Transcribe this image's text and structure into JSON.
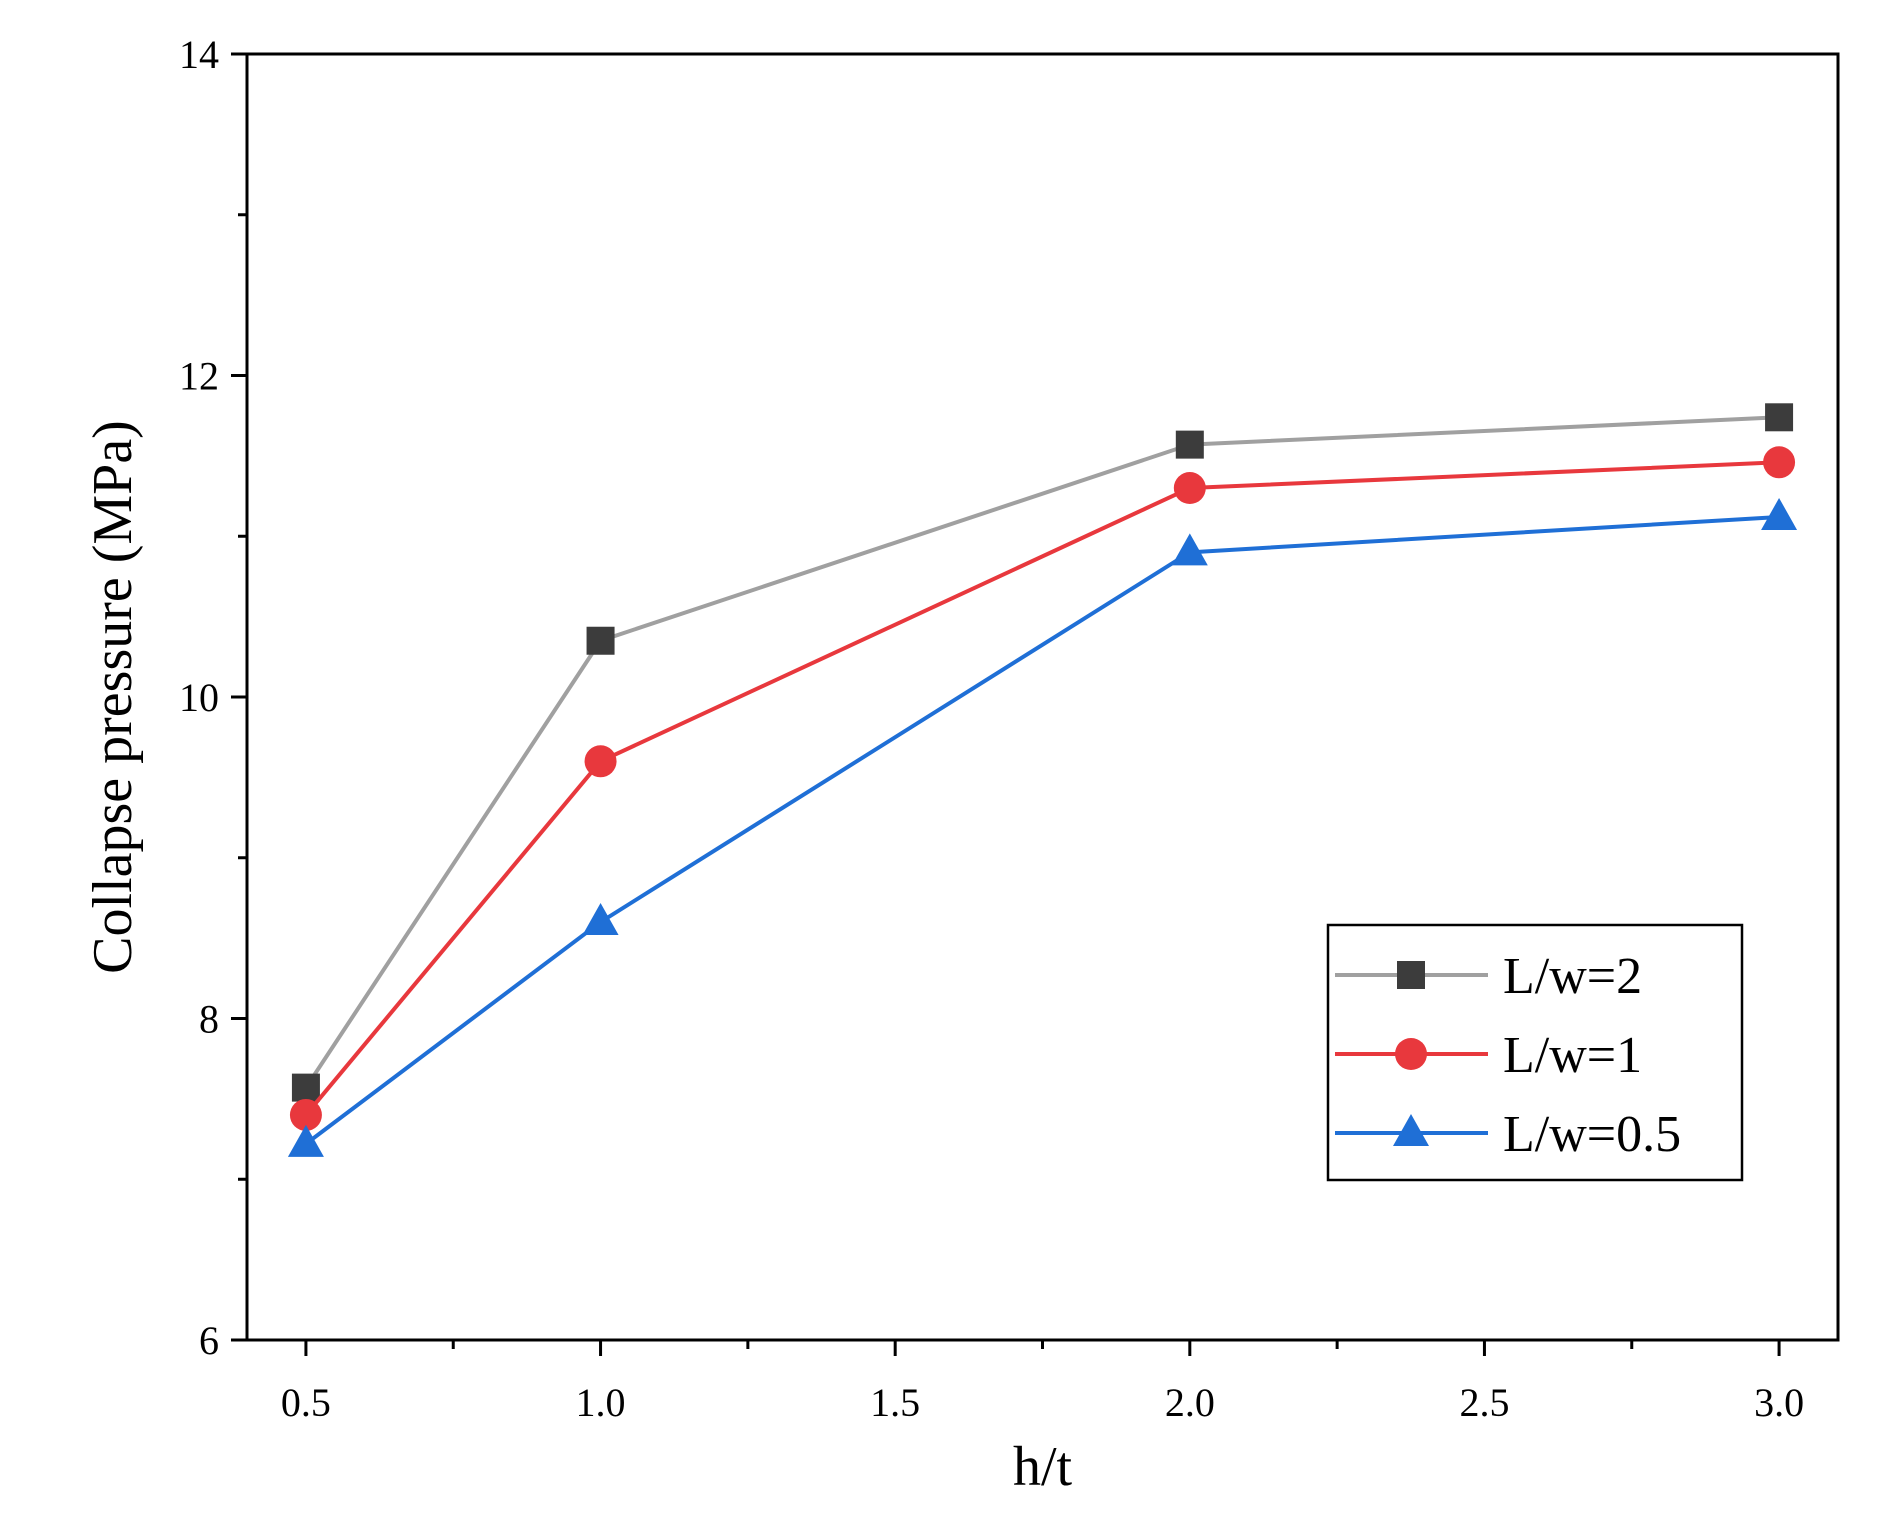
{
  "chart_data": {
    "type": "line",
    "title": "",
    "xlabel": "h/t",
    "ylabel": "Collapse pressure (MPa)",
    "xlim": [
      0.4,
      3.1
    ],
    "ylim": [
      6,
      14
    ],
    "x_ticks": [
      0.5,
      1.0,
      1.5,
      2.0,
      2.5,
      3.0
    ],
    "x_tick_labels": [
      "0.5",
      "1.0",
      "1.5",
      "2.0",
      "2.5",
      "3.0"
    ],
    "y_ticks": [
      6,
      8,
      10,
      12,
      14
    ],
    "y_tick_labels": [
      "6",
      "8",
      "10",
      "12",
      "14"
    ],
    "grid": false,
    "legend_position": "lower-right",
    "series": [
      {
        "name": "L/w=2",
        "marker": "square",
        "line_color": "#a0a0a0",
        "marker_color": "#3c3c3c",
        "x": [
          0.5,
          1.0,
          2.0,
          3.0
        ],
        "y": [
          7.57,
          10.35,
          11.57,
          11.74
        ]
      },
      {
        "name": "L/w=1",
        "marker": "circle",
        "line_color": "#e8383d",
        "marker_color": "#e8383d",
        "x": [
          0.5,
          1.0,
          2.0,
          3.0
        ],
        "y": [
          7.4,
          9.6,
          11.3,
          11.46
        ]
      },
      {
        "name": "L/w=0.5",
        "marker": "triangle",
        "line_color": "#1f6fd6",
        "marker_color": "#1f6fd6",
        "x": [
          0.5,
          1.0,
          2.0,
          3.0
        ],
        "y": [
          7.22,
          8.6,
          10.9,
          11.12
        ]
      }
    ]
  }
}
